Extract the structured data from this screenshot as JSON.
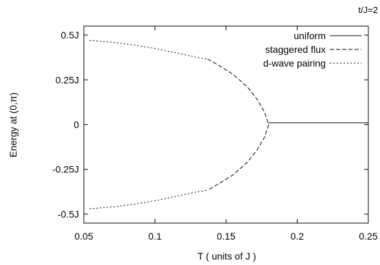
{
  "chart_data": {
    "type": "line",
    "annotation": "t/J=2",
    "xlabel": "T ( units of J )",
    "ylabel": "Energy at (0,π)",
    "xlim": [
      0.05,
      0.25
    ],
    "ylim": [
      -0.55,
      0.55
    ],
    "x_ticks": [
      {
        "value": 0.05,
        "label": "0.05"
      },
      {
        "value": 0.1,
        "label": "0.1"
      },
      {
        "value": 0.15,
        "label": "0.15"
      },
      {
        "value": 0.2,
        "label": "0.2"
      },
      {
        "value": 0.25,
        "label": "0.25"
      }
    ],
    "y_ticks": [
      {
        "value": 0.5,
        "label": "0.5J"
      },
      {
        "value": 0.25,
        "label": "0.25J"
      },
      {
        "value": 0,
        "label": "0"
      },
      {
        "value": -0.25,
        "label": "-0.25J"
      },
      {
        "value": -0.5,
        "label": "-0.5J"
      }
    ],
    "grid": false,
    "legend_position": "top-right",
    "series": [
      {
        "name": "uniform",
        "dash": "solid",
        "branches": [
          {
            "x": [
              0.18,
              0.2,
              0.22,
              0.25
            ],
            "y": [
              0.01,
              0.01,
              0.01,
              0.01
            ]
          }
        ]
      },
      {
        "name": "staggered flux",
        "dash": "dashed",
        "branches": [
          {
            "x": [
              0.137,
              0.145,
              0.155,
              0.165,
              0.172,
              0.177,
              0.18
            ],
            "y": [
              0.366,
              0.33,
              0.28,
              0.21,
              0.14,
              0.07,
              0.0
            ]
          },
          {
            "x": [
              0.18,
              0.177,
              0.172,
              0.165,
              0.155,
              0.145,
              0.137
            ],
            "y": [
              0.0,
              -0.07,
              -0.14,
              -0.21,
              -0.28,
              -0.33,
              -0.366
            ]
          }
        ]
      },
      {
        "name": "d-wave pairing",
        "dash": "dotted",
        "branches": [
          {
            "x": [
              0.054,
              0.07,
              0.085,
              0.1,
              0.115,
              0.13,
              0.137
            ],
            "y": [
              0.47,
              0.46,
              0.445,
              0.425,
              0.4,
              0.375,
              0.366
            ]
          },
          {
            "x": [
              0.054,
              0.07,
              0.085,
              0.1,
              0.115,
              0.13,
              0.137
            ],
            "y": [
              -0.47,
              -0.46,
              -0.445,
              -0.425,
              -0.4,
              -0.375,
              -0.366
            ]
          }
        ]
      }
    ]
  }
}
